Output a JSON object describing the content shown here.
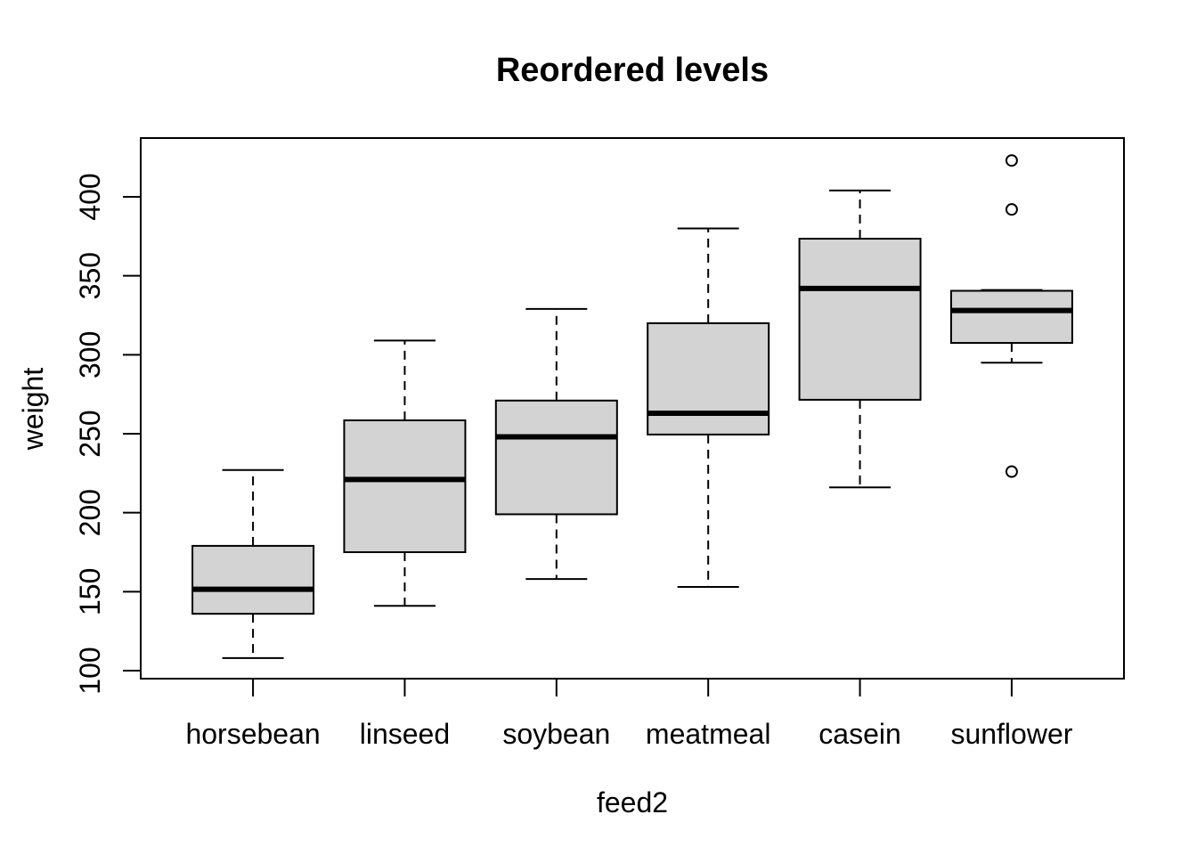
{
  "figure": {
    "title": "Reordered levels",
    "x_axis_label": "feed2",
    "y_axis_label": "weight"
  },
  "chart_data": {
    "type": "boxplot",
    "title": "Reordered levels",
    "xlabel": "feed2",
    "ylabel": "weight",
    "categories": [
      "horsebean",
      "linseed",
      "soybean",
      "meatmeal",
      "casein",
      "sunflower"
    ],
    "y_ticks": [
      100,
      150,
      200,
      250,
      300,
      350,
      400
    ],
    "ylim": [
      95,
      437
    ],
    "grid": false,
    "legend": "none",
    "series": [
      {
        "name": "horsebean",
        "whisker_low": 108,
        "q1": 136,
        "median": 151.5,
        "q3": 179,
        "whisker_high": 227,
        "outliers": []
      },
      {
        "name": "linseed",
        "whisker_low": 141,
        "q1": 175,
        "median": 221,
        "q3": 258.5,
        "whisker_high": 309,
        "outliers": []
      },
      {
        "name": "soybean",
        "whisker_low": 158,
        "q1": 199,
        "median": 248,
        "q3": 271,
        "whisker_high": 329,
        "outliers": []
      },
      {
        "name": "meatmeal",
        "whisker_low": 153,
        "q1": 249.5,
        "median": 263,
        "q3": 320,
        "whisker_high": 380,
        "outliers": []
      },
      {
        "name": "casein",
        "whisker_low": 216,
        "q1": 271.5,
        "median": 342,
        "q3": 373.5,
        "whisker_high": 404,
        "outliers": []
      },
      {
        "name": "sunflower",
        "whisker_low": 295,
        "q1": 307.5,
        "median": 328,
        "q3": 340.5,
        "whisker_high": 341,
        "outliers": [
          226,
          392,
          423
        ]
      }
    ],
    "colors": {
      "box_fill": "#d3d3d3",
      "line": "#000000",
      "background": "#ffffff"
    }
  }
}
